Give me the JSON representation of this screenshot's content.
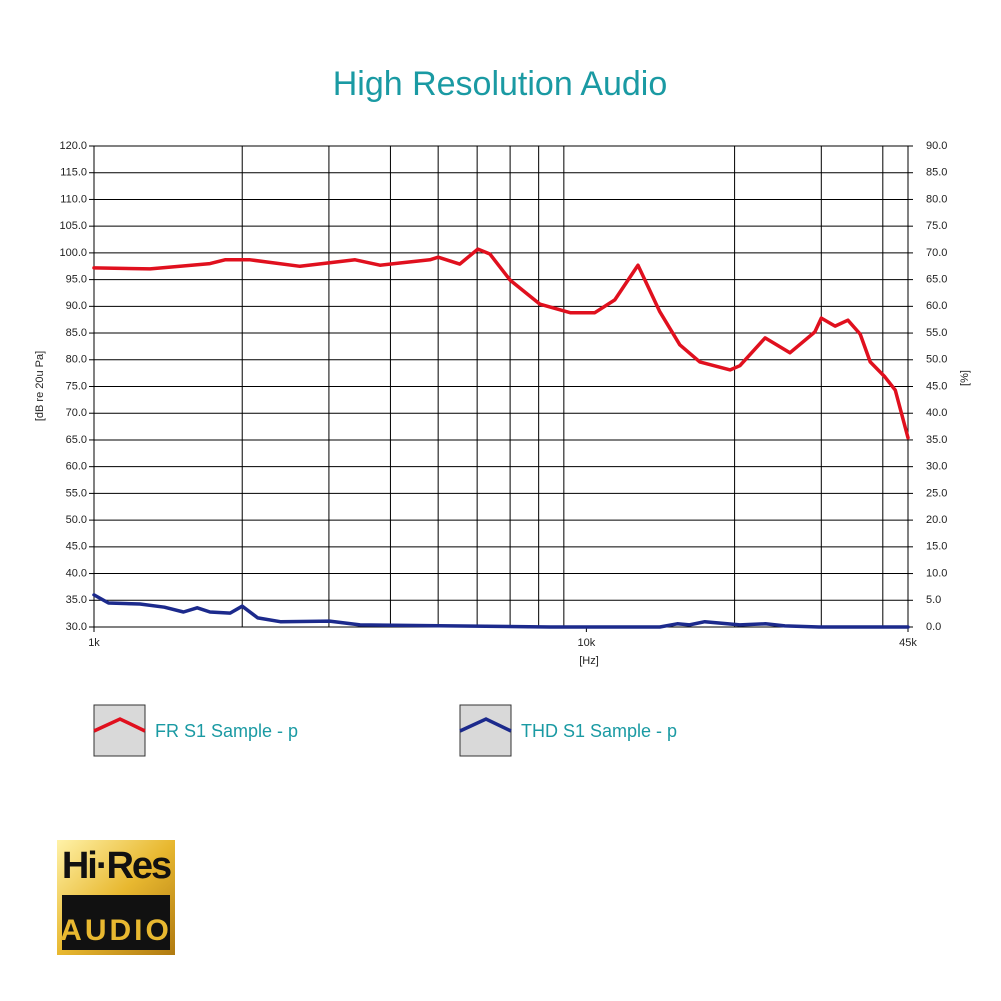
{
  "chart_data": {
    "type": "line",
    "title": "High Resolution Audio",
    "xlabel": "[Hz]",
    "ylabel": "[dB re 20u Pa]",
    "y2label": "[%]",
    "xscale": "log",
    "grid": true,
    "xlim": [
      1000,
      45000
    ],
    "xticks": [
      {
        "value": 1000,
        "label": "1k"
      },
      {
        "value": 10000,
        "label": "10k"
      },
      {
        "value": 45000,
        "label": "45k"
      }
    ],
    "xminor": [
      2000,
      3000,
      4000,
      5000,
      6000,
      7000,
      8000,
      9000,
      20000,
      30000,
      40000
    ],
    "ylim": [
      30,
      120
    ],
    "yticks": [
      {
        "value": 30,
        "label": "30.0"
      },
      {
        "value": 35,
        "label": "35.0"
      },
      {
        "value": 40,
        "label": "40.0"
      },
      {
        "value": 45,
        "label": "45.0"
      },
      {
        "value": 50,
        "label": "50.0"
      },
      {
        "value": 55,
        "label": "55.0"
      },
      {
        "value": 60,
        "label": "60.0"
      },
      {
        "value": 65,
        "label": "65.0"
      },
      {
        "value": 70,
        "label": "70.0"
      },
      {
        "value": 75,
        "label": "75.0"
      },
      {
        "value": 80,
        "label": "80.0"
      },
      {
        "value": 85,
        "label": "85.0"
      },
      {
        "value": 90,
        "label": "90.0"
      },
      {
        "value": 95,
        "label": "95.0"
      },
      {
        "value": 100,
        "label": "100.0"
      },
      {
        "value": 105,
        "label": "105.0"
      },
      {
        "value": 110,
        "label": "110.0"
      },
      {
        "value": 115,
        "label": "115.0"
      },
      {
        "value": 120,
        "label": "120.0"
      }
    ],
    "y2lim": [
      0,
      90
    ],
    "y2ticks": [
      {
        "value": 0,
        "label": "0.0"
      },
      {
        "value": 5,
        "label": "5.0"
      },
      {
        "value": 10,
        "label": "10.0"
      },
      {
        "value": 15,
        "label": "15.0"
      },
      {
        "value": 20,
        "label": "20.0"
      },
      {
        "value": 25,
        "label": "25.0"
      },
      {
        "value": 30,
        "label": "30.0"
      },
      {
        "value": 35,
        "label": "35.0"
      },
      {
        "value": 40,
        "label": "40.0"
      },
      {
        "value": 45,
        "label": "45.0"
      },
      {
        "value": 50,
        "label": "50.0"
      },
      {
        "value": 55,
        "label": "55.0"
      },
      {
        "value": 60,
        "label": "60.0"
      },
      {
        "value": 65,
        "label": "65.0"
      },
      {
        "value": 70,
        "label": "70.0"
      },
      {
        "value": 75,
        "label": "75.0"
      },
      {
        "value": 80,
        "label": "80.0"
      },
      {
        "value": 85,
        "label": "85.0"
      },
      {
        "value": 90,
        "label": "90.0"
      }
    ],
    "series": [
      {
        "name": "FR S1 Sample - p",
        "color": "#e0101e",
        "axis": "y",
        "x": [
          1000,
          1300,
          1720,
          1845,
          2075,
          2620,
          3390,
          3810,
          4180,
          4810,
          5000,
          5530,
          6020,
          6370,
          7000,
          8050,
          9270,
          10400,
          11420,
          12730,
          14100,
          15480,
          17000,
          19590,
          20500,
          23070,
          25900,
          29100,
          30000,
          32000,
          33980,
          35980,
          37700,
          40400,
          42400,
          45000
        ],
        "values": [
          97.2,
          97.0,
          98.0,
          98.7,
          98.7,
          97.5,
          98.7,
          97.7,
          98.1,
          98.7,
          99.2,
          97.9,
          100.7,
          99.8,
          94.9,
          90.4,
          88.8,
          88.8,
          91.2,
          97.7,
          89.0,
          82.8,
          79.6,
          78.1,
          78.9,
          84.1,
          81.3,
          85.2,
          87.8,
          86.3,
          87.4,
          84.8,
          79.6,
          76.8,
          74.3,
          65.4
        ]
      },
      {
        "name": "THD S1 Sample - p",
        "color": "#1c2a8c",
        "axis": "y2",
        "x": [
          1000,
          1070,
          1240,
          1390,
          1520,
          1620,
          1720,
          1890,
          2000,
          2150,
          2390,
          3010,
          3470,
          5300,
          8440,
          14100,
          15300,
          16200,
          17400,
          20500,
          23100,
          25300,
          29700,
          45000
        ],
        "values": [
          6.0,
          4.5,
          4.3,
          3.7,
          2.8,
          3.6,
          2.8,
          2.6,
          3.9,
          1.7,
          1.0,
          1.1,
          0.4,
          0.2,
          0.0,
          0.0,
          0.6,
          0.4,
          1.0,
          0.4,
          0.6,
          0.2,
          0.0,
          0.0
        ]
      }
    ]
  },
  "logo": {
    "top": "Hi·Res",
    "bottom": "AUDIO"
  }
}
